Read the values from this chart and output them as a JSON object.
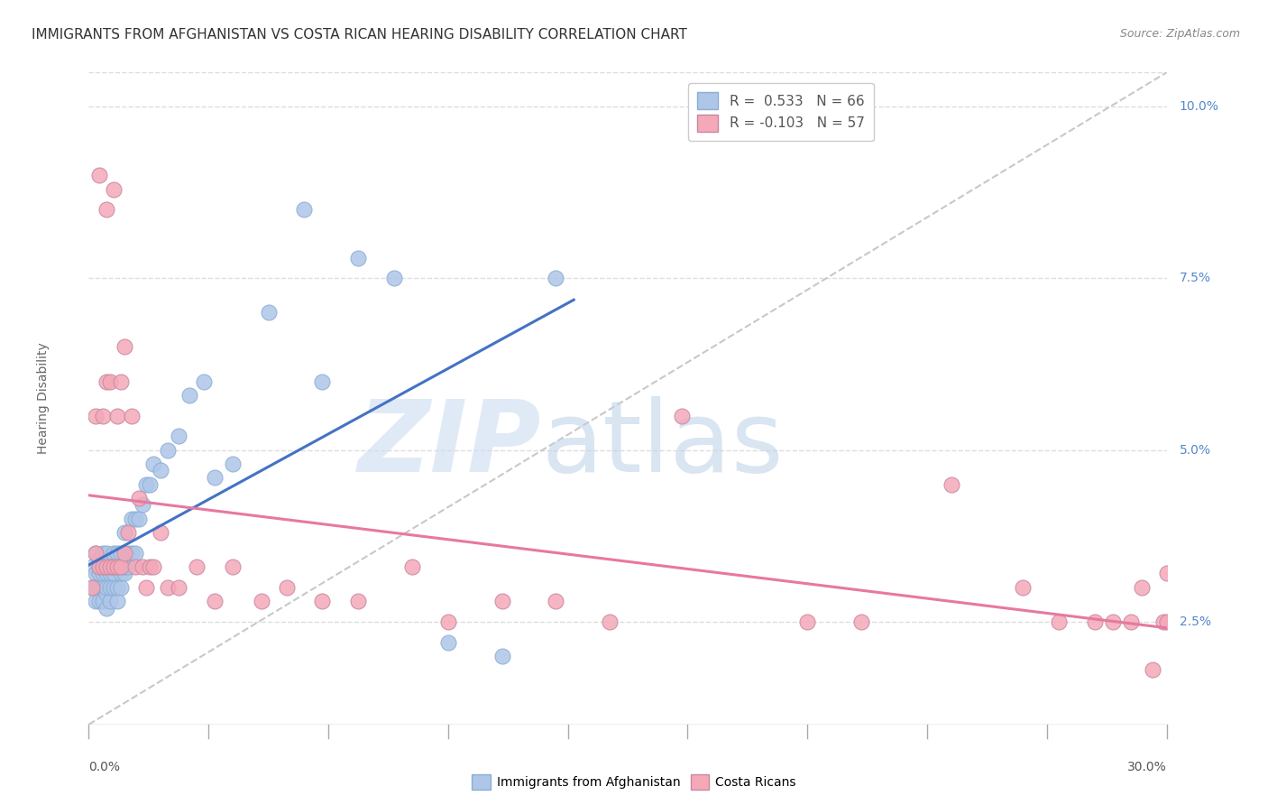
{
  "title": "IMMIGRANTS FROM AFGHANISTAN VS COSTA RICAN HEARING DISABILITY CORRELATION CHART",
  "source": "Source: ZipAtlas.com",
  "ylabel": "Hearing Disability",
  "ytick_labels": [
    "2.5%",
    "5.0%",
    "7.5%",
    "10.0%"
  ],
  "ytick_values": [
    0.025,
    0.05,
    0.075,
    0.1
  ],
  "xlim": [
    0.0,
    0.3
  ],
  "ylim": [
    0.01,
    0.105
  ],
  "legend_blue_label": "R =  0.533   N = 66",
  "legend_pink_label": "R = -0.103   N = 57",
  "legend_blue_color": "#aec6e8",
  "legend_pink_color": "#f4a8b8",
  "trend_blue_color": "#4472c4",
  "trend_pink_color": "#e878a0",
  "dashed_line_color": "#c8c8c8",
  "background_color": "#ffffff",
  "grid_color": "#dddddd",
  "title_fontsize": 11,
  "tick_fontsize": 10,
  "source_fontsize": 9,
  "blue_x": [
    0.001,
    0.001,
    0.002,
    0.002,
    0.002,
    0.002,
    0.003,
    0.003,
    0.003,
    0.003,
    0.003,
    0.004,
    0.004,
    0.004,
    0.004,
    0.004,
    0.005,
    0.005,
    0.005,
    0.005,
    0.005,
    0.005,
    0.006,
    0.006,
    0.006,
    0.006,
    0.007,
    0.007,
    0.007,
    0.007,
    0.008,
    0.008,
    0.008,
    0.008,
    0.009,
    0.009,
    0.009,
    0.01,
    0.01,
    0.01,
    0.011,
    0.011,
    0.012,
    0.012,
    0.013,
    0.013,
    0.014,
    0.015,
    0.016,
    0.017,
    0.018,
    0.02,
    0.022,
    0.025,
    0.028,
    0.032,
    0.035,
    0.04,
    0.05,
    0.06,
    0.065,
    0.075,
    0.085,
    0.1,
    0.115,
    0.13
  ],
  "blue_y": [
    0.03,
    0.033,
    0.028,
    0.032,
    0.03,
    0.035,
    0.028,
    0.03,
    0.032,
    0.034,
    0.033,
    0.028,
    0.03,
    0.032,
    0.033,
    0.035,
    0.027,
    0.029,
    0.03,
    0.032,
    0.033,
    0.035,
    0.028,
    0.03,
    0.032,
    0.033,
    0.03,
    0.032,
    0.033,
    0.035,
    0.028,
    0.03,
    0.033,
    0.035,
    0.03,
    0.032,
    0.035,
    0.032,
    0.033,
    0.038,
    0.033,
    0.035,
    0.035,
    0.04,
    0.035,
    0.04,
    0.04,
    0.042,
    0.045,
    0.045,
    0.048,
    0.047,
    0.05,
    0.052,
    0.058,
    0.06,
    0.046,
    0.048,
    0.07,
    0.085,
    0.06,
    0.078,
    0.075,
    0.022,
    0.02,
    0.075
  ],
  "pink_x": [
    0.001,
    0.002,
    0.002,
    0.003,
    0.003,
    0.004,
    0.004,
    0.005,
    0.005,
    0.005,
    0.006,
    0.006,
    0.007,
    0.007,
    0.008,
    0.008,
    0.009,
    0.009,
    0.01,
    0.01,
    0.011,
    0.012,
    0.013,
    0.014,
    0.015,
    0.016,
    0.017,
    0.018,
    0.02,
    0.022,
    0.025,
    0.03,
    0.035,
    0.04,
    0.048,
    0.055,
    0.065,
    0.075,
    0.09,
    0.1,
    0.115,
    0.13,
    0.145,
    0.165,
    0.2,
    0.215,
    0.24,
    0.26,
    0.27,
    0.28,
    0.285,
    0.29,
    0.293,
    0.296,
    0.299,
    0.3,
    0.3
  ],
  "pink_y": [
    0.03,
    0.035,
    0.055,
    0.033,
    0.09,
    0.033,
    0.055,
    0.033,
    0.06,
    0.085,
    0.033,
    0.06,
    0.033,
    0.088,
    0.033,
    0.055,
    0.033,
    0.06,
    0.035,
    0.065,
    0.038,
    0.055,
    0.033,
    0.043,
    0.033,
    0.03,
    0.033,
    0.033,
    0.038,
    0.03,
    0.03,
    0.033,
    0.028,
    0.033,
    0.028,
    0.03,
    0.028,
    0.028,
    0.033,
    0.025,
    0.028,
    0.028,
    0.025,
    0.055,
    0.025,
    0.025,
    0.045,
    0.03,
    0.025,
    0.025,
    0.025,
    0.025,
    0.03,
    0.018,
    0.025,
    0.025,
    0.032
  ]
}
